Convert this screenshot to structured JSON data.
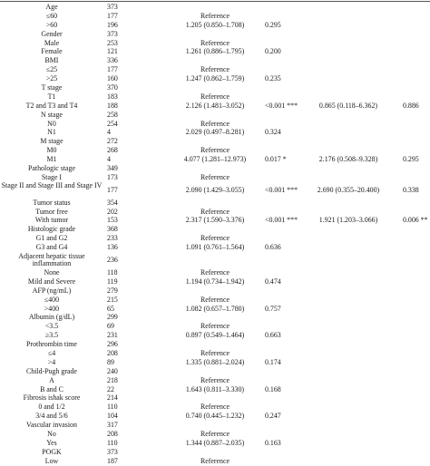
{
  "rows": [
    {
      "label": "Age",
      "n": "373",
      "hr": "",
      "p": "",
      "mhr": "",
      "mp": ""
    },
    {
      "label": "≤60",
      "n": "177",
      "hr": "Reference",
      "p": "",
      "mhr": "",
      "mp": ""
    },
    {
      "label": ">60",
      "n": "196",
      "hr": "1.205 (0.850–1.708)",
      "p": "0.295",
      "mhr": "",
      "mp": ""
    },
    {
      "label": "Gender",
      "n": "373",
      "hr": "",
      "p": "",
      "mhr": "",
      "mp": ""
    },
    {
      "label": "Male",
      "n": "253",
      "hr": "Reference",
      "p": "",
      "mhr": "",
      "mp": ""
    },
    {
      "label": "Female",
      "n": "121",
      "hr": "1.261 (0.886–1.795)",
      "p": "0.200",
      "mhr": "",
      "mp": ""
    },
    {
      "label": "BMI",
      "n": "336",
      "hr": "",
      "p": "",
      "mhr": "",
      "mp": ""
    },
    {
      "label": "≤25",
      "n": "177",
      "hr": "Reference",
      "p": "",
      "mhr": "",
      "mp": ""
    },
    {
      "label": ">25",
      "n": "160",
      "hr": "1.247 (0.862–1.759)",
      "p": "0.235",
      "mhr": "",
      "mp": ""
    },
    {
      "label": "T stage",
      "n": "370",
      "hr": "",
      "p": "",
      "mhr": "",
      "mp": ""
    },
    {
      "label": "T1",
      "n": "183",
      "hr": "Reference",
      "p": "",
      "mhr": "",
      "mp": ""
    },
    {
      "label": "T2 and T3 and T4",
      "n": "188",
      "hr": "2.126 (1.481–3.052)",
      "p": "<0.001 ***",
      "mhr": "0.865 (0.118–6.362)",
      "mp": "0.886"
    },
    {
      "label": "N stage",
      "n": "258",
      "hr": "",
      "p": "",
      "mhr": "",
      "mp": ""
    },
    {
      "label": "N0",
      "n": "254",
      "hr": "Reference",
      "p": "",
      "mhr": "",
      "mp": ""
    },
    {
      "label": "N1",
      "n": "4",
      "hr": "2.029 (0.497–8.281)",
      "p": "0.324",
      "mhr": "",
      "mp": ""
    },
    {
      "label": "M stage",
      "n": "272",
      "hr": "",
      "p": "",
      "mhr": "",
      "mp": ""
    },
    {
      "label": "M0",
      "n": "268",
      "hr": "Reference",
      "p": "",
      "mhr": "",
      "mp": ""
    },
    {
      "label": "M1",
      "n": "4",
      "hr": "4.077 (1.281–12.973)",
      "p": "0.017 *",
      "mhr": "2.176 (0.508–9.328)",
      "mp": "0.295"
    },
    {
      "label": "Pathologic stage",
      "n": "349",
      "hr": "",
      "p": "",
      "mhr": "",
      "mp": ""
    },
    {
      "label": "Stage I",
      "n": "173",
      "hr": "Reference",
      "p": "",
      "mhr": "",
      "mp": ""
    },
    {
      "label": "Stage II and Stage III and Stage IV",
      "n": "177",
      "hr": "2.090 (1.429–3.055)",
      "p": "<0.001 ***",
      "mhr": "2.690 (0.355–20.400)",
      "mp": "0.338",
      "two": true
    },
    {
      "label": "Tumor status",
      "n": "354",
      "hr": "",
      "p": "",
      "mhr": "",
      "mp": ""
    },
    {
      "label": "Tumor free",
      "n": "202",
      "hr": "Reference",
      "p": "",
      "mhr": "",
      "mp": ""
    },
    {
      "label": "With tumor",
      "n": "153",
      "hr": "2.317 (1.590–3.376)",
      "p": "<0.001 ***",
      "mhr": "1.921 (1.203–3.066)",
      "mp": "0.006 **"
    },
    {
      "label": "Histologic grade",
      "n": "368",
      "hr": "",
      "p": "",
      "mhr": "",
      "mp": ""
    },
    {
      "label": "G1 and G2",
      "n": "233",
      "hr": "Reference",
      "p": "",
      "mhr": "",
      "mp": ""
    },
    {
      "label": "G3 and G4",
      "n": "136",
      "hr": "1.091 (0.761–1.564)",
      "p": "0.636",
      "mhr": "",
      "mp": ""
    },
    {
      "label": "Adjacent hepatic tissue inflammation",
      "n": "236",
      "hr": "",
      "p": "",
      "mhr": "",
      "mp": "",
      "two": true
    },
    {
      "label": "None",
      "n": "118",
      "hr": "Reference",
      "p": "",
      "mhr": "",
      "mp": ""
    },
    {
      "label": "Mild and Severe",
      "n": "119",
      "hr": "1.194 (0.734–1.942)",
      "p": "0.474",
      "mhr": "",
      "mp": ""
    },
    {
      "label": "AFP (ng/mL)",
      "n": "279",
      "hr": "",
      "p": "",
      "mhr": "",
      "mp": ""
    },
    {
      "label": "≤400",
      "n": "215",
      "hr": "Reference",
      "p": "",
      "mhr": "",
      "mp": ""
    },
    {
      "label": ">400",
      "n": "65",
      "hr": "1.082 (0.657–1.780)",
      "p": "0.757",
      "mhr": "",
      "mp": ""
    },
    {
      "label": "Albumin (g/dL)",
      "n": "299",
      "hr": "",
      "p": "",
      "mhr": "",
      "mp": ""
    },
    {
      "label": "<3.5",
      "n": "69",
      "hr": "Reference",
      "p": "",
      "mhr": "",
      "mp": ""
    },
    {
      "label": "≥3.5",
      "n": "231",
      "hr": "0.897 (0.549–1.464)",
      "p": "0.663",
      "mhr": "",
      "mp": ""
    },
    {
      "label": "Prothrombin time",
      "n": "296",
      "hr": "",
      "p": "",
      "mhr": "",
      "mp": ""
    },
    {
      "label": "≤4",
      "n": "208",
      "hr": "Reference",
      "p": "",
      "mhr": "",
      "mp": ""
    },
    {
      "label": ">4",
      "n": "89",
      "hr": "1.335 (0.881–2.024)",
      "p": "0.174",
      "mhr": "",
      "mp": ""
    },
    {
      "label": "Child-Pugh grade",
      "n": "240",
      "hr": "",
      "p": "",
      "mhr": "",
      "mp": ""
    },
    {
      "label": "A",
      "n": "218",
      "hr": "Reference",
      "p": "",
      "mhr": "",
      "mp": ""
    },
    {
      "label": "B and C",
      "n": "22",
      "hr": "1.643 (0.811–3.330)",
      "p": "0.168",
      "mhr": "",
      "mp": ""
    },
    {
      "label": "Fibrosis ishak score",
      "n": "214",
      "hr": "",
      "p": "",
      "mhr": "",
      "mp": ""
    },
    {
      "label": "0 and 1/2",
      "n": "110",
      "hr": "Reference",
      "p": "",
      "mhr": "",
      "mp": ""
    },
    {
      "label": "3/4 and 5/6",
      "n": "104",
      "hr": "0.740 (0.445–1.232)",
      "p": "0.247",
      "mhr": "",
      "mp": ""
    },
    {
      "label": "Vascular invasion",
      "n": "317",
      "hr": "",
      "p": "",
      "mhr": "",
      "mp": ""
    },
    {
      "label": "No",
      "n": "208",
      "hr": "Reference",
      "p": "",
      "mhr": "",
      "mp": ""
    },
    {
      "label": "Yes",
      "n": "110",
      "hr": "1.344 (0.887–2.035)",
      "p": "0.163",
      "mhr": "",
      "mp": ""
    },
    {
      "label": "POGK",
      "n": "373",
      "hr": "",
      "p": "",
      "mhr": "",
      "mp": ""
    },
    {
      "label": "Low",
      "n": "187",
      "hr": "Reference",
      "p": "",
      "mhr": "",
      "mp": ""
    }
  ]
}
